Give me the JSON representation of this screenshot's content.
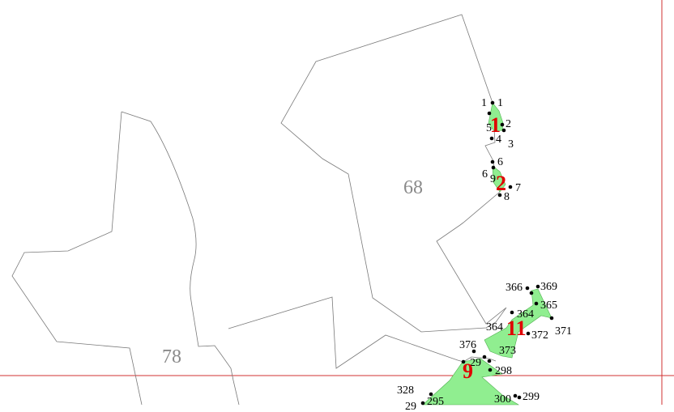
{
  "map": {
    "area_labels": [
      {
        "id": "68",
        "text": "68"
      },
      {
        "id": "78",
        "text": "78"
      }
    ],
    "plot_labels": [
      {
        "id": "1",
        "text": "1"
      },
      {
        "id": "2",
        "text": "2"
      },
      {
        "id": "11",
        "text": "11"
      },
      {
        "id": "9",
        "text": "9"
      }
    ],
    "point_labels": [
      "1",
      "1",
      "5",
      "2",
      "4",
      "3",
      "6",
      "6",
      "9",
      "7",
      "8",
      "366",
      "369",
      "365",
      "364",
      "364",
      "372",
      "371",
      "376",
      "373",
      "29",
      "298",
      "328",
      "29",
      "295",
      "300",
      "299"
    ],
    "colors": {
      "plot_fill": "#90ee90",
      "plot_label": "#e00000",
      "area_label": "#8a8a8a",
      "boundary": "#7a7a7a",
      "guide_line": "#d03030"
    }
  }
}
